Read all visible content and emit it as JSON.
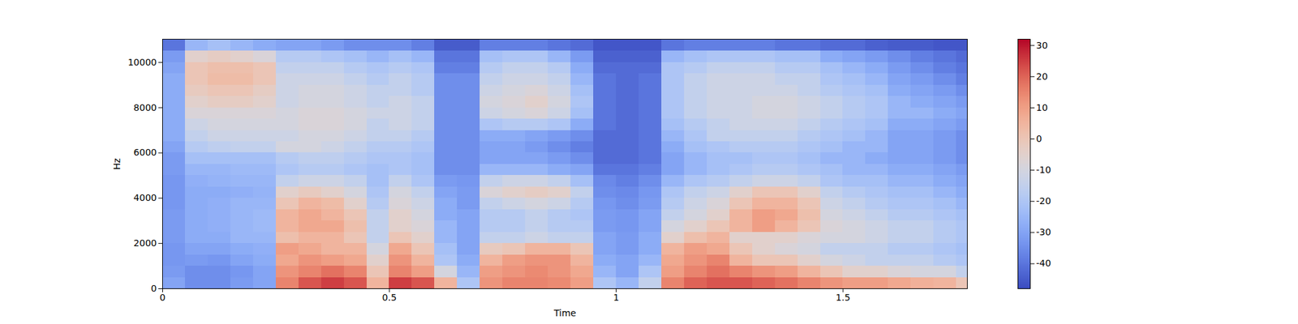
{
  "chart_data": {
    "type": "heatmap",
    "x_label": "Time",
    "y_label": "Hz",
    "xlim": [
      0,
      1.774
    ],
    "ylim": [
      0,
      11025
    ],
    "xticks": [
      0,
      0.5,
      1,
      1.5
    ],
    "yticks": [
      0,
      2000,
      4000,
      6000,
      8000,
      10000
    ],
    "time_edges": [
      0,
      0.05,
      0.1,
      0.15,
      0.2,
      0.25,
      0.3,
      0.35,
      0.4,
      0.45,
      0.5,
      0.55,
      0.6,
      0.65,
      0.7,
      0.75,
      0.8,
      0.85,
      0.9,
      0.95,
      1.0,
      1.05,
      1.1,
      1.15,
      1.2,
      1.25,
      1.3,
      1.35,
      1.4,
      1.45,
      1.5,
      1.55,
      1.6,
      1.65,
      1.7,
      1.75,
      1.774
    ],
    "freq_edges": [
      0,
      500,
      1000,
      1500,
      2000,
      2500,
      3000,
      3500,
      4000,
      4500,
      5000,
      5500,
      6000,
      6500,
      7000,
      7500,
      8000,
      8500,
      9000,
      9500,
      10000,
      10500,
      11025
    ],
    "cells": [
      [
        -30,
        -35,
        -35,
        -32,
        -30,
        15,
        22,
        25,
        22,
        5,
        25,
        22,
        5,
        -20,
        12,
        15,
        15,
        14,
        10,
        -20,
        -25,
        -15,
        15,
        20,
        22,
        22,
        20,
        18,
        15,
        12,
        10,
        10,
        8,
        6,
        5,
        0
      ],
      [
        -32,
        -35,
        -35,
        -33,
        -30,
        12,
        15,
        18,
        15,
        0,
        15,
        10,
        -10,
        -25,
        10,
        12,
        14,
        12,
        8,
        -25,
        -30,
        -20,
        10,
        15,
        18,
        15,
        12,
        10,
        5,
        0,
        -5,
        -5,
        -8,
        -10,
        -10,
        -15
      ],
      [
        -33,
        -32,
        -33,
        -30,
        -28,
        8,
        12,
        10,
        8,
        -5,
        12,
        5,
        -20,
        -28,
        5,
        10,
        12,
        12,
        5,
        -28,
        -30,
        -25,
        8,
        12,
        15,
        5,
        0,
        0,
        -5,
        -10,
        -12,
        -15,
        -15,
        -15,
        -18,
        -20
      ],
      [
        -33,
        -30,
        -30,
        -28,
        -27,
        10,
        8,
        5,
        5,
        -10,
        8,
        0,
        -22,
        -30,
        -2,
        0,
        5,
        5,
        0,
        -30,
        -32,
        -28,
        5,
        10,
        8,
        0,
        -5,
        -8,
        -10,
        -15,
        -15,
        -15,
        -18,
        -18,
        -20,
        -22
      ],
      [
        -32,
        -28,
        -28,
        -25,
        -25,
        2,
        5,
        5,
        0,
        -15,
        0,
        -5,
        -25,
        -30,
        -15,
        -15,
        -12,
        -15,
        -15,
        -30,
        -32,
        -28,
        -5,
        2,
        5,
        -5,
        -5,
        -5,
        -8,
        -10,
        -10,
        -12,
        -15,
        -15,
        -18,
        -20
      ],
      [
        -32,
        -28,
        -27,
        -25,
        -24,
        5,
        8,
        8,
        2,
        -15,
        -5,
        -8,
        -25,
        -30,
        -18,
        -18,
        -15,
        -18,
        -18,
        -32,
        -33,
        -30,
        -10,
        -5,
        0,
        5,
        10,
        5,
        0,
        -8,
        -10,
        -12,
        -15,
        -15,
        -18,
        -20
      ],
      [
        -32,
        -28,
        -27,
        -25,
        -24,
        5,
        8,
        5,
        0,
        -15,
        -5,
        -10,
        -28,
        -30,
        -18,
        -18,
        -15,
        -18,
        -20,
        -32,
        -33,
        -30,
        -15,
        -10,
        -5,
        5,
        10,
        8,
        2,
        -10,
        -12,
        -15,
        -18,
        -18,
        -20,
        -22
      ],
      [
        -33,
        -28,
        -27,
        -25,
        -25,
        0,
        5,
        3,
        -5,
        -18,
        -8,
        -12,
        -28,
        -32,
        -15,
        -12,
        -10,
        -12,
        -18,
        -33,
        -35,
        -32,
        -18,
        -12,
        -8,
        0,
        5,
        5,
        0,
        -12,
        -15,
        -18,
        -20,
        -20,
        -22,
        -25
      ],
      [
        -33,
        -28,
        -28,
        -27,
        -26,
        -5,
        -2,
        -5,
        -10,
        -20,
        -10,
        -15,
        -30,
        -32,
        -8,
        -5,
        -3,
        -5,
        -15,
        -35,
        -36,
        -33,
        -20,
        -15,
        -12,
        -5,
        0,
        0,
        -5,
        -15,
        -18,
        -20,
        -22,
        -22,
        -25,
        -28
      ],
      [
        -33,
        -27,
        -26,
        -25,
        -25,
        -15,
        -12,
        -12,
        -15,
        -22,
        -15,
        -20,
        -32,
        -33,
        -15,
        -12,
        -12,
        -15,
        -22,
        -36,
        -38,
        -35,
        -25,
        -20,
        -18,
        -15,
        -12,
        -12,
        -15,
        -20,
        -22,
        -22,
        -25,
        -25,
        -28,
        -30
      ],
      [
        -32,
        -25,
        -25,
        -24,
        -24,
        -20,
        -18,
        -18,
        -20,
        -22,
        -20,
        -22,
        -35,
        -35,
        -25,
        -25,
        -25,
        -28,
        -30,
        -40,
        -40,
        -38,
        -30,
        -25,
        -22,
        -20,
        -18,
        -18,
        -20,
        -22,
        -25,
        -25,
        -28,
        -28,
        -30,
        -32
      ],
      [
        -32,
        -22,
        -22,
        -22,
        -22,
        -18,
        -16,
        -16,
        -18,
        -20,
        -20,
        -22,
        -35,
        -35,
        -30,
        -30,
        -30,
        -32,
        -35,
        -42,
        -42,
        -40,
        -30,
        -25,
        -22,
        -22,
        -20,
        -20,
        -22,
        -25,
        -25,
        -28,
        -30,
        -30,
        -32,
        -35
      ],
      [
        -30,
        -18,
        -16,
        -15,
        -15,
        -10,
        -10,
        -12,
        -15,
        -18,
        -18,
        -20,
        -35,
        -35,
        -30,
        -30,
        -32,
        -35,
        -38,
        -42,
        -42,
        -40,
        -28,
        -22,
        -20,
        -18,
        -18,
        -18,
        -20,
        -22,
        -25,
        -25,
        -30,
        -30,
        -32,
        -35
      ],
      [
        -28,
        -15,
        -12,
        -12,
        -12,
        -12,
        -10,
        -10,
        -12,
        -15,
        -15,
        -18,
        -35,
        -35,
        -28,
        -28,
        -30,
        -32,
        -35,
        -42,
        -42,
        -40,
        -25,
        -20,
        -15,
        -15,
        -15,
        -15,
        -18,
        -20,
        -22,
        -25,
        -30,
        -30,
        -32,
        -35
      ],
      [
        -28,
        -12,
        -10,
        -10,
        -10,
        -10,
        -8,
        -8,
        -10,
        -15,
        -12,
        -15,
        -35,
        -35,
        -20,
        -18,
        -18,
        -20,
        -28,
        -40,
        -42,
        -40,
        -22,
        -18,
        -15,
        -12,
        -12,
        -12,
        -15,
        -18,
        -20,
        -22,
        -28,
        -28,
        -30,
        -32
      ],
      [
        -28,
        -8,
        -8,
        -8,
        -8,
        -10,
        -8,
        -8,
        -10,
        -12,
        -12,
        -15,
        -35,
        -35,
        -12,
        -10,
        -8,
        -12,
        -22,
        -40,
        -42,
        -40,
        -20,
        -15,
        -12,
        -12,
        -10,
        -10,
        -12,
        -15,
        -18,
        -20,
        -25,
        -25,
        -28,
        -30
      ],
      [
        -28,
        -5,
        -3,
        -3,
        -5,
        -12,
        -10,
        -10,
        -12,
        -15,
        -12,
        -15,
        -35,
        -35,
        -10,
        -8,
        -5,
        -10,
        -20,
        -40,
        -42,
        -40,
        -20,
        -15,
        -12,
        -12,
        -10,
        -10,
        -12,
        -15,
        -18,
        -20,
        -25,
        -28,
        -30,
        -32
      ],
      [
        -28,
        -2,
        0,
        0,
        -3,
        -12,
        -10,
        -10,
        -12,
        -15,
        -15,
        -18,
        -35,
        -35,
        -12,
        -10,
        -8,
        -12,
        -22,
        -40,
        -42,
        -40,
        -20,
        -15,
        -12,
        -12,
        -12,
        -12,
        -15,
        -18,
        -20,
        -22,
        -28,
        -30,
        -32,
        -35
      ],
      [
        -28,
        0,
        3,
        3,
        0,
        -12,
        -12,
        -12,
        -15,
        -18,
        -15,
        -18,
        -35,
        -35,
        -15,
        -12,
        -12,
        -15,
        -25,
        -40,
        -42,
        -40,
        -20,
        -15,
        -12,
        -12,
        -12,
        -15,
        -15,
        -20,
        -22,
        -25,
        -30,
        -32,
        -35,
        -38
      ],
      [
        -30,
        0,
        2,
        2,
        0,
        -15,
        -15,
        -15,
        -18,
        -20,
        -18,
        -20,
        -38,
        -38,
        -18,
        -15,
        -15,
        -18,
        -28,
        -42,
        -42,
        -42,
        -20,
        -18,
        -15,
        -15,
        -15,
        -18,
        -18,
        -22,
        -25,
        -28,
        -32,
        -35,
        -38,
        -40
      ],
      [
        -32,
        -5,
        -3,
        -5,
        -8,
        -18,
        -18,
        -20,
        -22,
        -25,
        -22,
        -25,
        -40,
        -40,
        -22,
        -20,
        -20,
        -25,
        -32,
        -44,
        -44,
        -44,
        -25,
        -22,
        -20,
        -20,
        -20,
        -22,
        -22,
        -28,
        -30,
        -32,
        -35,
        -38,
        -40,
        -42
      ],
      [
        -40,
        -25,
        -22,
        -25,
        -28,
        -30,
        -30,
        -32,
        -35,
        -35,
        -35,
        -38,
        -45,
        -45,
        -38,
        -38,
        -38,
        -40,
        -42,
        -46,
        -46,
        -46,
        -40,
        -38,
        -38,
        -38,
        -38,
        -40,
        -40,
        -42,
        -42,
        -44,
        -45,
        -45,
        -46,
        -46
      ]
    ],
    "colorbar": {
      "range": [
        -48,
        32
      ],
      "ticks": [
        -40,
        -30,
        -20,
        -10,
        0,
        10,
        20,
        30
      ]
    }
  }
}
